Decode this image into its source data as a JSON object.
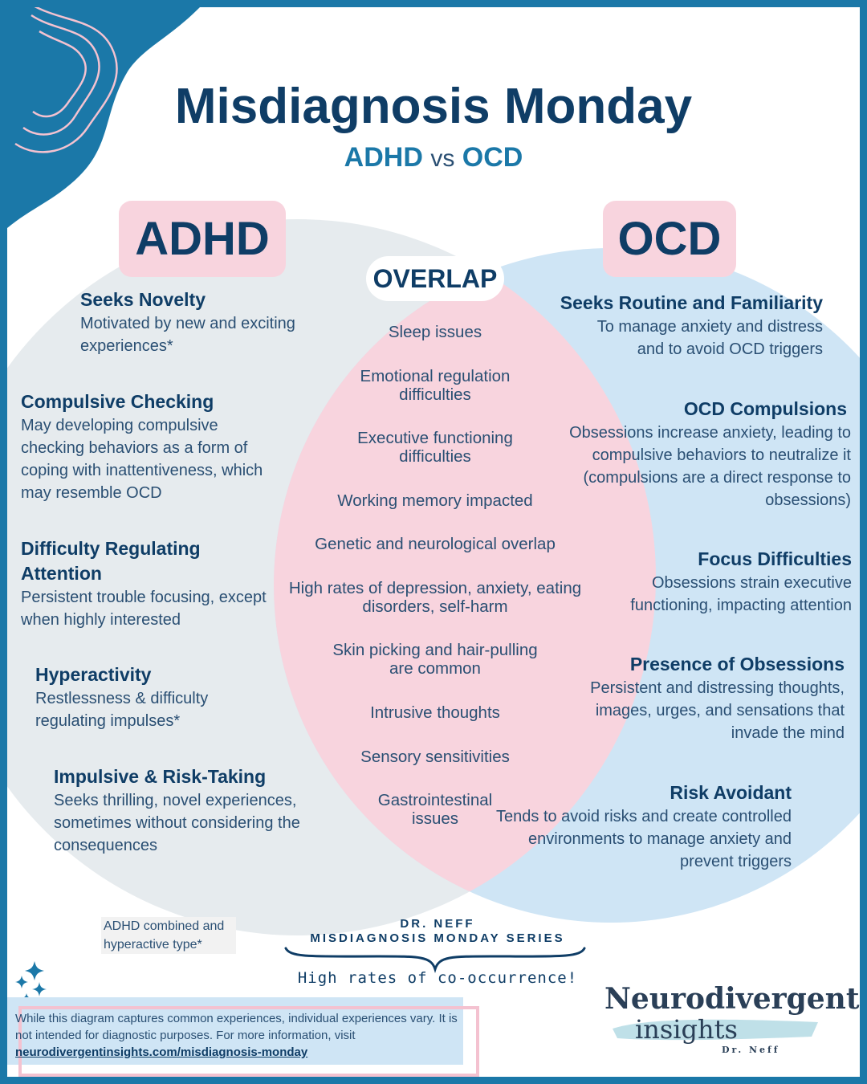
{
  "header": {
    "title": "Misdiagnosis Monday",
    "subtitle_left": "ADHD",
    "subtitle_vs": "vs",
    "subtitle_right": "OCD"
  },
  "colors": {
    "frame": "#1b78a8",
    "adhd_circle": "#e6ebee",
    "ocd_circle": "#cfe5f5",
    "overlap": "#f8d4de",
    "heading": "#0f3d66",
    "text": "#2a4f73"
  },
  "adhd": {
    "label": "ADHD",
    "items": [
      {
        "title": "Seeks Novelty",
        "desc": "Motivated by new and exciting experiences*"
      },
      {
        "title": "Compulsive Checking",
        "desc": "May developing compulsive checking behaviors as a form of coping with inattentiveness, which may resemble OCD"
      },
      {
        "title": "Difficulty Regulating Attention",
        "desc": "Persistent trouble focusing, except when highly interested"
      },
      {
        "title": "Hyperactivity",
        "desc": "Restlessness & difficulty regulating impulses*"
      },
      {
        "title": "Impulsive & Risk-Taking",
        "desc": "Seeks thrilling, novel experiences, sometimes without considering the consequences"
      }
    ]
  },
  "overlap": {
    "label": "OVERLAP",
    "items": [
      "Sleep issues",
      "Emotional regulation difficulties",
      "Executive functioning difficulties",
      "Working memory impacted",
      "Genetic and neurological overlap",
      "High rates of depression, anxiety, eating disorders, self-harm",
      "Skin picking and hair-pulling are common",
      "Intrusive thoughts",
      "Sensory sensitivities",
      "Gastrointestinal issues"
    ]
  },
  "ocd": {
    "label": "OCD",
    "items": [
      {
        "title": "Seeks Routine and Familiarity",
        "desc": "To manage anxiety and distress and to avoid OCD triggers"
      },
      {
        "title": "OCD Compulsions",
        "desc": "Obsessions increase anxiety, leading to compulsive behaviors to neutralize it (compulsions are a direct response to obsessions)"
      },
      {
        "title": "Focus Difficulties",
        "desc": "Obsessions strain executive functioning, impacting attention"
      },
      {
        "title": "Presence of Obsessions",
        "desc": "Persistent and distressing thoughts, images, urges, and sensations that invade the mind"
      },
      {
        "title": "Risk Avoidant",
        "desc": "Tends to avoid risks and create controlled environments to manage anxiety and prevent triggers"
      }
    ]
  },
  "footnote": "ADHD combined and hyperactive type*",
  "series": {
    "author": "DR. NEFF",
    "name": "MISDIAGNOSIS MONDAY SERIES",
    "tagline": "High rates of co-occurrence!"
  },
  "disclaimer": {
    "text": "While this diagram captures common experiences, individual experiences vary. It is not intended for diagnostic purposes. For more information, visit",
    "link": "neurodivergentinsights.com/misdiagnosis-monday"
  },
  "logo": {
    "line1": "Neurodivergent",
    "line2": "insights",
    "signature": "Dr. Neff"
  }
}
